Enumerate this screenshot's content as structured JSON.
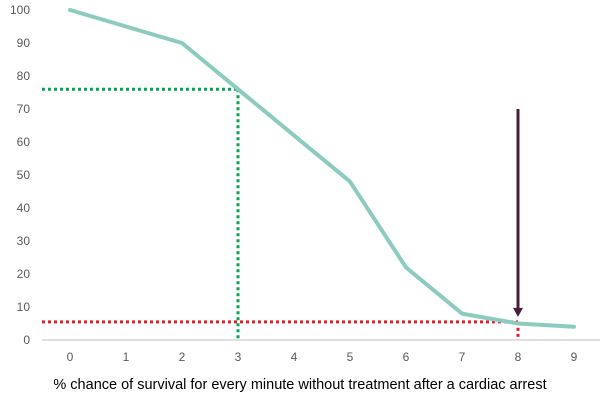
{
  "chart_data": {
    "type": "line",
    "x": [
      0,
      1,
      2,
      3,
      4,
      5,
      6,
      7,
      8,
      9
    ],
    "y": [
      100,
      95,
      90,
      76,
      62,
      48,
      22,
      8,
      5,
      4
    ],
    "xlabel": "% chance of survival for every minute without treatment after a cardiac arrest",
    "ylabel": "",
    "title": "",
    "xlim": [
      0,
      9
    ],
    "ylim": [
      0,
      100
    ],
    "y_ticks": [
      0,
      10,
      20,
      30,
      40,
      50,
      60,
      70,
      80,
      90,
      100
    ],
    "x_ticks": [
      0,
      1,
      2,
      3,
      4,
      5,
      6,
      7,
      8,
      9
    ],
    "grid": false,
    "legend": "none",
    "annotations": [
      {
        "kind": "dotted-guide",
        "x": 3,
        "y": 76,
        "color": "#00a651"
      },
      {
        "kind": "dotted-guide",
        "x": 8,
        "y": 5.5,
        "color": "#e31e24"
      },
      {
        "kind": "arrow",
        "x": 8,
        "y_from": 70,
        "y_to": 7,
        "color": "#4b1f3a"
      }
    ],
    "colors": {
      "line": "#8ccbbf",
      "axis": "#bfbfbf"
    }
  }
}
